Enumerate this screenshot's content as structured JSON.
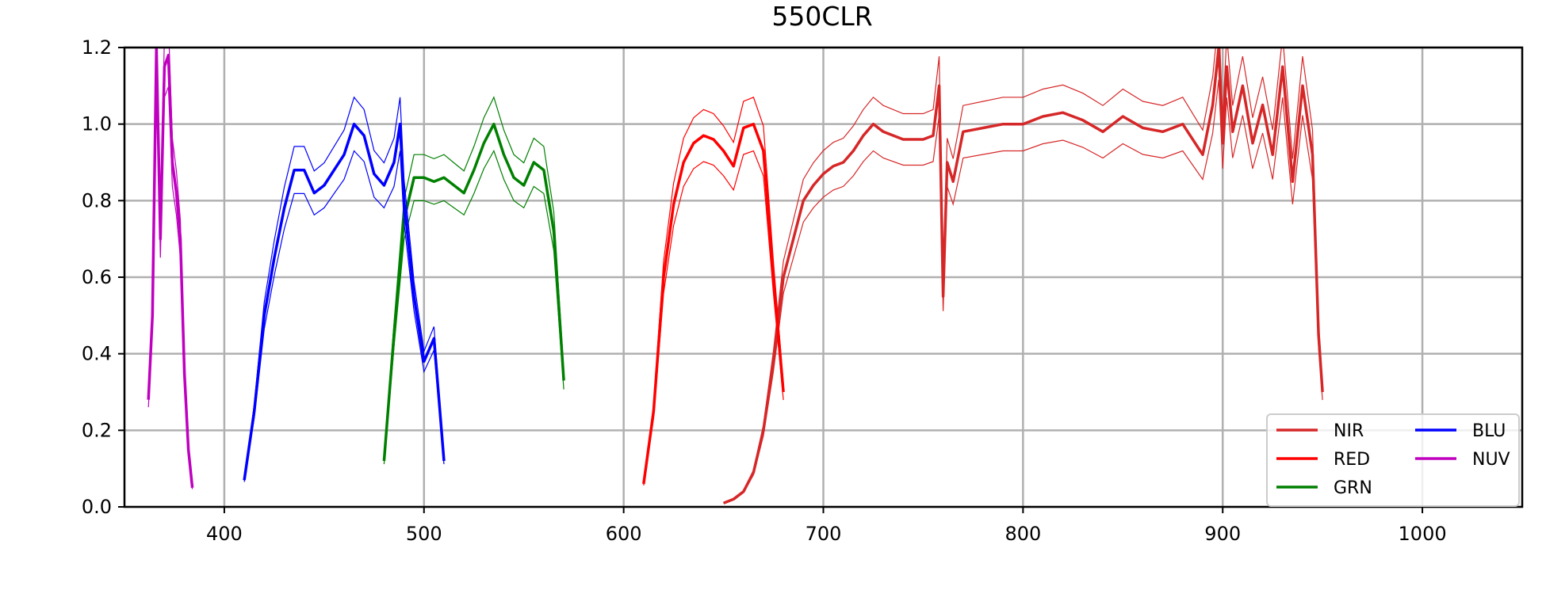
{
  "chart_data": {
    "type": "line",
    "title": "550CLR",
    "xlabel": "",
    "ylabel": "",
    "xlim": [
      350,
      1050
    ],
    "ylim": [
      0.0,
      1.2
    ],
    "xticks": [
      400,
      500,
      600,
      700,
      800,
      900,
      1000
    ],
    "yticks": [
      0.0,
      0.2,
      0.4,
      0.6,
      0.8,
      1.0,
      1.2
    ],
    "grid": true,
    "legend_position": "bottom-right",
    "legend_columns": 2,
    "series": [
      {
        "name": "NIR",
        "color": "#d62728",
        "x": [
          650,
          655,
          660,
          665,
          670,
          675,
          680,
          685,
          690,
          695,
          700,
          705,
          710,
          715,
          720,
          725,
          730,
          740,
          750,
          755,
          758,
          760,
          762,
          765,
          770,
          780,
          790,
          800,
          810,
          820,
          830,
          840,
          850,
          860,
          870,
          880,
          890,
          895,
          898,
          900,
          902,
          905,
          910,
          915,
          920,
          925,
          930,
          935,
          940,
          945,
          948,
          950
        ],
        "y": [
          0.01,
          0.02,
          0.04,
          0.09,
          0.2,
          0.38,
          0.6,
          0.7,
          0.8,
          0.84,
          0.87,
          0.89,
          0.9,
          0.93,
          0.97,
          1.0,
          0.98,
          0.96,
          0.96,
          0.97,
          1.1,
          0.55,
          0.9,
          0.85,
          0.98,
          0.99,
          1.0,
          1.0,
          1.02,
          1.03,
          1.01,
          0.98,
          1.02,
          0.99,
          0.98,
          1.0,
          0.92,
          1.05,
          1.2,
          0.95,
          1.15,
          0.98,
          1.1,
          0.95,
          1.05,
          0.92,
          1.15,
          0.85,
          1.1,
          0.92,
          0.45,
          0.3
        ]
      },
      {
        "name": "RED",
        "color": "#ff0000",
        "x": [
          610,
          615,
          620,
          625,
          630,
          635,
          640,
          645,
          650,
          655,
          660,
          665,
          670,
          675,
          680
        ],
        "y": [
          0.06,
          0.25,
          0.6,
          0.79,
          0.9,
          0.95,
          0.97,
          0.96,
          0.93,
          0.89,
          0.99,
          1.0,
          0.93,
          0.6,
          0.3
        ]
      },
      {
        "name": "GRN",
        "color": "#008000",
        "x": [
          480,
          485,
          490,
          495,
          500,
          505,
          510,
          515,
          520,
          525,
          530,
          535,
          540,
          545,
          550,
          555,
          560,
          565,
          570
        ],
        "y": [
          0.12,
          0.45,
          0.75,
          0.86,
          0.86,
          0.85,
          0.86,
          0.84,
          0.82,
          0.88,
          0.95,
          1.0,
          0.92,
          0.86,
          0.84,
          0.9,
          0.88,
          0.72,
          0.33
        ]
      },
      {
        "name": "BLU",
        "color": "#0000ff",
        "x": [
          410,
          415,
          420,
          425,
          430,
          435,
          440,
          445,
          450,
          455,
          460,
          465,
          470,
          475,
          480,
          485,
          488,
          490,
          495,
          500,
          505,
          510
        ],
        "y": [
          0.07,
          0.25,
          0.5,
          0.65,
          0.78,
          0.88,
          0.88,
          0.82,
          0.84,
          0.88,
          0.92,
          1.0,
          0.97,
          0.87,
          0.84,
          0.9,
          1.0,
          0.8,
          0.55,
          0.38,
          0.44,
          0.12
        ]
      },
      {
        "name": "NUV",
        "color": "#bf00bf",
        "x": [
          362,
          364,
          366,
          368,
          370,
          372,
          374,
          376,
          378,
          380,
          382,
          384
        ],
        "y": [
          0.28,
          0.5,
          1.2,
          0.7,
          1.15,
          1.18,
          0.9,
          0.82,
          0.7,
          0.35,
          0.15,
          0.05
        ]
      }
    ]
  }
}
